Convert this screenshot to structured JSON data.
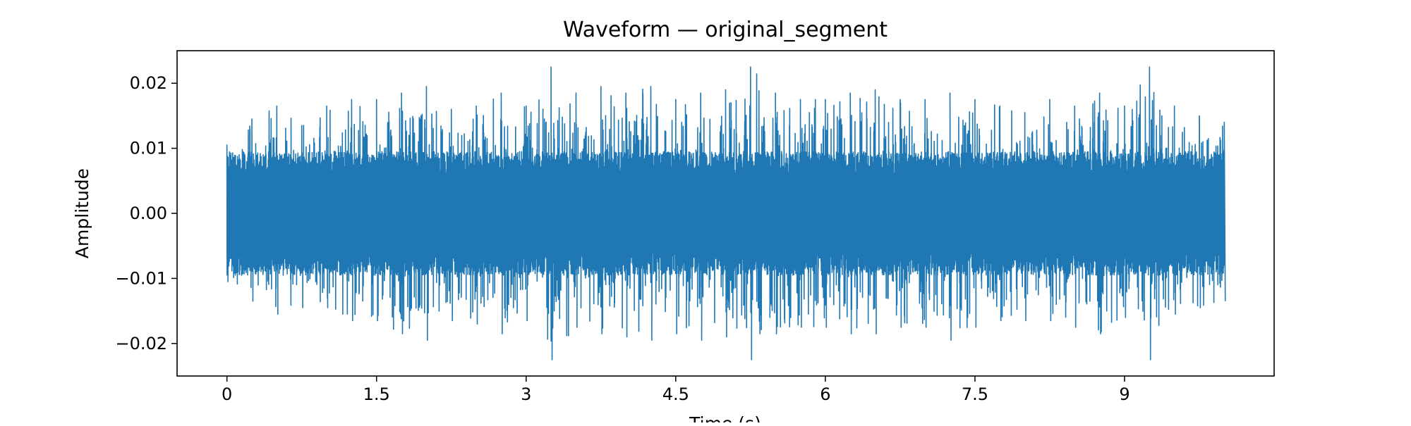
{
  "chart_data": {
    "type": "line",
    "title": "Waveform — original_segment",
    "xlabel": "Time (s)",
    "ylabel": "Amplitude",
    "xlim": [
      -0.5,
      10.5
    ],
    "ylim": [
      -0.025,
      0.025
    ],
    "x_ticks": [
      0,
      1.5,
      3,
      4.5,
      6,
      7.5,
      9
    ],
    "x_tick_labels": [
      "0",
      "1.5",
      "3",
      "4.5",
      "6",
      "7.5",
      "9"
    ],
    "y_ticks": [
      0.02,
      0.01,
      0.0,
      -0.01,
      -0.02
    ],
    "y_tick_labels": [
      "0.02",
      "0.01",
      "0.00",
      "−0.01",
      "−0.02"
    ],
    "grid": false,
    "series_color": "#1f77b4",
    "series": [
      {
        "x": [
          0.0,
          0.25,
          0.5,
          0.75,
          1.0,
          1.25,
          1.5,
          1.75,
          2.0,
          2.25,
          2.5,
          2.75,
          3.0,
          3.25,
          3.5,
          3.75,
          4.0,
          4.25,
          4.5,
          4.75,
          5.0,
          5.25,
          5.5,
          5.75,
          6.0,
          6.25,
          6.5,
          6.75,
          7.0,
          7.25,
          7.5,
          7.75,
          8.0,
          8.25,
          8.5,
          8.75,
          9.0,
          9.25,
          9.5,
          9.75,
          10.0
        ],
        "upper": [
          0.0105,
          0.0145,
          0.0165,
          0.0135,
          0.0165,
          0.0175,
          0.0175,
          0.0185,
          0.0195,
          0.016,
          0.0165,
          0.0185,
          0.0165,
          0.0225,
          0.0185,
          0.0195,
          0.0185,
          0.0195,
          0.0175,
          0.0185,
          0.019,
          0.0225,
          0.0185,
          0.0175,
          0.0175,
          0.0185,
          0.019,
          0.0175,
          0.0175,
          0.0185,
          0.0175,
          0.0165,
          0.0155,
          0.0175,
          0.0165,
          0.0185,
          0.0165,
          0.0225,
          0.0165,
          0.015,
          0.014
        ],
        "lower": [
          -0.0105,
          -0.0135,
          -0.0155,
          -0.0145,
          -0.0145,
          -0.0165,
          -0.0165,
          -0.0185,
          -0.0195,
          -0.0165,
          -0.017,
          -0.0185,
          -0.0165,
          -0.0225,
          -0.0175,
          -0.0185,
          -0.019,
          -0.0195,
          -0.0185,
          -0.0195,
          -0.019,
          -0.0225,
          -0.0185,
          -0.0175,
          -0.0175,
          -0.0185,
          -0.0185,
          -0.0175,
          -0.0175,
          -0.0195,
          -0.0175,
          -0.0165,
          -0.0165,
          -0.0165,
          -0.0175,
          -0.0185,
          -0.016,
          -0.0225,
          -0.0155,
          -0.0145,
          -0.0135
        ],
        "dense_abs": 0.0095
      }
    ]
  }
}
